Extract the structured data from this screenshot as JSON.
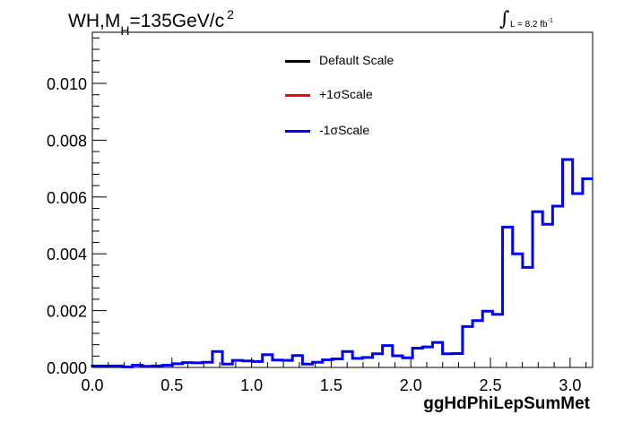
{
  "chart_data": {
    "type": "line",
    "title_main": "WH,M",
    "title_sub": "H",
    "title_rest": "=135GeV/c",
    "title_sup": "2",
    "lumi_text": "L = 8.2 fb",
    "lumi_sup": "-1",
    "xlabel": "ggHdPhiLepSumMet",
    "ylabel": "",
    "xlim": [
      0,
      3.1416
    ],
    "ylim": [
      0,
      0.0118
    ],
    "x_ticks": [
      "0.0",
      "0.5",
      "1.0",
      "1.5",
      "2.0",
      "2.5",
      "3.0"
    ],
    "y_ticks": [
      "0.000",
      "0.002",
      "0.004",
      "0.006",
      "0.008",
      "0.010"
    ],
    "legend": [
      {
        "name": "Default Scale",
        "color": "#000000"
      },
      {
        "name": "+1σScale",
        "color": "#ff0000"
      },
      {
        "name": "-1σScale",
        "color": "#0000ff"
      }
    ],
    "bin_edges": [
      0.0,
      0.0628,
      0.1257,
      0.1885,
      0.2513,
      0.3142,
      0.377,
      0.4398,
      0.5027,
      0.5655,
      0.6283,
      0.6912,
      0.754,
      0.8168,
      0.8796,
      0.9425,
      1.0053,
      1.0681,
      1.131,
      1.1938,
      1.2566,
      1.3195,
      1.3823,
      1.4451,
      1.508,
      1.5708,
      1.6336,
      1.6965,
      1.7593,
      1.8221,
      1.885,
      1.9478,
      2.0106,
      2.0735,
      2.1363,
      2.1991,
      2.2619,
      2.3248,
      2.3876,
      2.4504,
      2.5133,
      2.5761,
      2.6389,
      2.7018,
      2.7646,
      2.8274,
      2.8903,
      2.9531,
      3.0159,
      3.0788,
      3.1416
    ],
    "series": [
      {
        "name": "-1σScale",
        "color": "#0000ff",
        "values": [
          5e-05,
          5e-05,
          5e-05,
          2e-05,
          8e-05,
          4e-05,
          5e-05,
          8e-05,
          0.00013,
          0.00017,
          0.00016,
          0.00018,
          0.00056,
          0.00012,
          0.00025,
          0.00023,
          0.00021,
          0.00045,
          0.00026,
          0.00025,
          0.00042,
          0.00012,
          0.00018,
          0.00027,
          0.0003,
          0.00056,
          0.00032,
          0.00035,
          0.00048,
          0.00077,
          0.00041,
          0.00034,
          0.00068,
          0.00072,
          0.00088,
          0.00048,
          0.00049,
          0.00144,
          0.00165,
          0.00198,
          0.00187,
          0.00494,
          0.004,
          0.00352,
          0.00548,
          0.00504,
          0.00568,
          0.00732,
          0.00612,
          0.00664
        ]
      }
    ]
  }
}
